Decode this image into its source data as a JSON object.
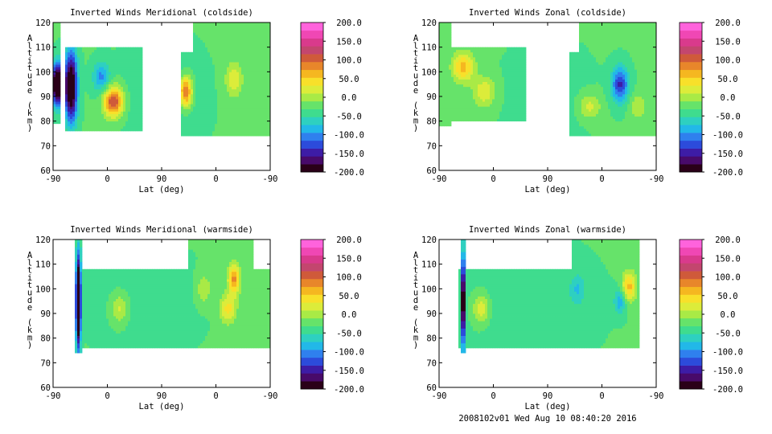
{
  "footer": "2008102v01 Wed Aug 10 08:40:20 2016",
  "colorbar": {
    "labels": [
      "200.0",
      "150.0",
      "100.0",
      "50.0",
      "0.0",
      "-50.0",
      "-100.0",
      "-150.0",
      "-200.0"
    ],
    "colors": [
      "#2a0018",
      "#480a6a",
      "#3d1ca6",
      "#2c4bdb",
      "#2f80ee",
      "#22b8e8",
      "#2ed0c0",
      "#3fdc8e",
      "#66e36a",
      "#a9ea46",
      "#dcec3a",
      "#f8e02a",
      "#f5b720",
      "#e8862a",
      "#cf5a3a",
      "#c3466e",
      "#d93a8c",
      "#f047b4",
      "#ff63dc"
    ]
  },
  "chart_data": [
    {
      "type": "heatmap",
      "title": "Inverted Winds Meridional (coldside)",
      "xlabel": "Lat (deg)",
      "ylabel": "Altitude (km)",
      "xticks": [
        "-90",
        "0",
        "90",
        "0",
        "-90"
      ],
      "yticks": [
        "60",
        "70",
        "80",
        "90",
        "100",
        "110",
        "120"
      ],
      "ylim": [
        60,
        120
      ],
      "zlim": [
        -200,
        200
      ],
      "colorbar_ticks": [
        200,
        150,
        100,
        50,
        0,
        -50,
        -100,
        -150,
        -200
      ]
    },
    {
      "type": "heatmap",
      "title": "Inverted Winds Zonal (coldside)",
      "xlabel": "Lat (deg)",
      "ylabel": "Altitude (km)",
      "xticks": [
        "-90",
        "0",
        "90",
        "0",
        "-90"
      ],
      "yticks": [
        "60",
        "70",
        "80",
        "90",
        "100",
        "110",
        "120"
      ],
      "ylim": [
        60,
        120
      ],
      "zlim": [
        -200,
        200
      ],
      "colorbar_ticks": [
        200,
        150,
        100,
        50,
        0,
        -50,
        -100,
        -150,
        -200
      ]
    },
    {
      "type": "heatmap",
      "title": "Inverted Winds Meridional (warmside)",
      "xlabel": "Lat (deg)",
      "ylabel": "Altitude (km)",
      "xticks": [
        "-90",
        "0",
        "90",
        "0",
        "-90"
      ],
      "yticks": [
        "60",
        "70",
        "80",
        "90",
        "100",
        "110",
        "120"
      ],
      "ylim": [
        60,
        120
      ],
      "zlim": [
        -200,
        200
      ],
      "colorbar_ticks": [
        200,
        150,
        100,
        50,
        0,
        -50,
        -100,
        -150,
        -200
      ]
    },
    {
      "type": "heatmap",
      "title": "Inverted Winds Zonal (warmside)",
      "xlabel": "Lat (deg)",
      "ylabel": "Altitude (km)",
      "xticks": [
        "-90",
        "0",
        "90",
        "0",
        "-90"
      ],
      "yticks": [
        "60",
        "70",
        "80",
        "90",
        "100",
        "110",
        "120"
      ],
      "ylim": [
        60,
        120
      ],
      "zlim": [
        -200,
        200
      ],
      "colorbar_ticks": [
        200,
        150,
        100,
        50,
        0,
        -50,
        -100,
        -150,
        -200
      ]
    }
  ]
}
